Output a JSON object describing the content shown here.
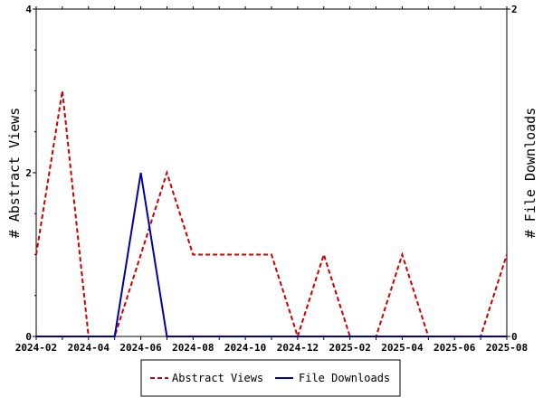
{
  "chart_data": {
    "type": "line",
    "title": "",
    "xlabel": "",
    "ylabel_left": "# Abstract Views",
    "ylabel_right": "# File Downloads",
    "x": [
      "2024-02",
      "2024-03",
      "2024-04",
      "2024-05",
      "2024-06",
      "2024-07",
      "2024-08",
      "2024-09",
      "2024-10",
      "2024-11",
      "2024-12",
      "2025-01",
      "2025-02",
      "2025-03",
      "2025-04",
      "2025-05",
      "2025-06",
      "2025-07",
      "2025-08"
    ],
    "x_tick_labels": [
      "2024-02",
      "2024-04",
      "2024-06",
      "2024-08",
      "2024-10",
      "2024-12",
      "2025-02",
      "2025-04",
      "2025-06",
      "2025-08"
    ],
    "y_left_ticks": [
      "0",
      "2",
      "4"
    ],
    "y_right_ticks": [
      "0",
      "2"
    ],
    "ylim_left": [
      0,
      4
    ],
    "ylim_right": [
      0,
      2
    ],
    "series": [
      {
        "name": "Abstract Views",
        "axis": "left",
        "color": "#cc0000",
        "dash": "dashed",
        "values": [
          1,
          3,
          0,
          0,
          1,
          2,
          1,
          1,
          1,
          1,
          0,
          1,
          0,
          0,
          1,
          0,
          0,
          0,
          1
        ]
      },
      {
        "name": "File Downloads",
        "axis": "right",
        "color": "#0000aa",
        "dash": "solid",
        "values": [
          0,
          0,
          0,
          0,
          1,
          0,
          0,
          0,
          0,
          0,
          0,
          0,
          0,
          0,
          0,
          0,
          0,
          0,
          0
        ]
      }
    ],
    "legend_position": "bottom",
    "grid": false
  }
}
